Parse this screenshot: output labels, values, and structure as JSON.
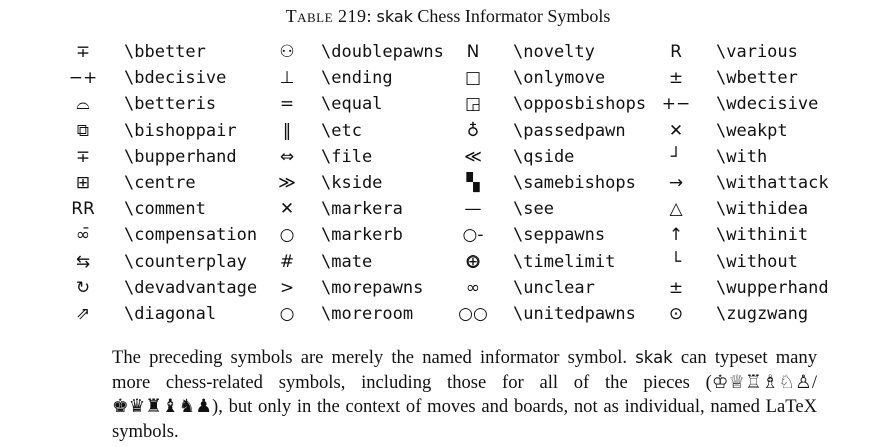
{
  "caption": {
    "label": "Table 219:",
    "package": "skak",
    "title": "Chess Informator Symbols"
  },
  "columns": [
    [
      {
        "glyph": "∓",
        "icon": "bbetter-icon",
        "command": "\\bbetter"
      },
      {
        "glyph": "−+",
        "icon": "bdecisive-icon",
        "command": "\\bdecisive"
      },
      {
        "glyph": "⌓",
        "icon": "betteris-icon",
        "command": "\\betteris"
      },
      {
        "glyph": "⧉",
        "icon": "bishoppair-icon",
        "command": "\\bishoppair"
      },
      {
        "glyph": "∓",
        "icon": "bupperhand-icon",
        "command": "\\bupperhand"
      },
      {
        "glyph": "⊞",
        "icon": "centre-icon",
        "command": "\\centre"
      },
      {
        "glyph": "RR",
        "icon": "comment-icon",
        "command": "\\comment"
      },
      {
        "glyph": "∞̄",
        "icon": "compensation-icon",
        "command": "\\compensation"
      },
      {
        "glyph": "⇆",
        "icon": "counterplay-icon",
        "command": "\\counterplay"
      },
      {
        "glyph": "↻",
        "icon": "devadvantage-icon",
        "command": "\\devadvantage"
      },
      {
        "glyph": "⇗",
        "icon": "diagonal-icon",
        "command": "\\diagonal"
      }
    ],
    [
      {
        "glyph": "⚇",
        "icon": "doublepawns-icon",
        "command": "\\doublepawns"
      },
      {
        "glyph": "⊥",
        "icon": "ending-icon",
        "command": "\\ending"
      },
      {
        "glyph": "=",
        "icon": "equal-icon",
        "command": "\\equal"
      },
      {
        "glyph": "‖",
        "icon": "etc-icon",
        "command": "\\etc"
      },
      {
        "glyph": "⇔",
        "icon": "file-icon",
        "command": "\\file"
      },
      {
        "glyph": "≫",
        "icon": "kside-icon",
        "command": "\\kside"
      },
      {
        "glyph": "✕",
        "icon": "markera-icon",
        "command": "\\markera"
      },
      {
        "glyph": "○",
        "icon": "markerb-icon",
        "command": "\\markerb"
      },
      {
        "glyph": "#",
        "icon": "mate-icon",
        "command": "\\mate"
      },
      {
        "glyph": ">",
        "icon": "morepawns-icon",
        "command": "\\morepawns"
      },
      {
        "glyph": "○",
        "icon": "moreroom-icon",
        "command": "\\moreroom"
      }
    ],
    [
      {
        "glyph": "N",
        "icon": "novelty-icon",
        "command": "\\novelty"
      },
      {
        "glyph": "□",
        "icon": "onlymove-icon",
        "command": "\\onlymove"
      },
      {
        "glyph": "◲",
        "icon": "opposbishops-icon",
        "command": "\\opposbishops"
      },
      {
        "glyph": "♁",
        "icon": "passedpawn-icon",
        "command": "\\passedpawn"
      },
      {
        "glyph": "≪",
        "icon": "qside-icon",
        "command": "\\qside"
      },
      {
        "glyph": "▚",
        "icon": "samebishops-icon",
        "command": "\\samebishops"
      },
      {
        "glyph": "—",
        "icon": "see-icon",
        "command": "\\see"
      },
      {
        "glyph": "○-○",
        "icon": "seppawns-icon",
        "command": "\\seppawns"
      },
      {
        "glyph": "⊕",
        "icon": "timelimit-icon",
        "command": "\\timelimit"
      },
      {
        "glyph": "∞",
        "icon": "unclear-icon",
        "command": "\\unclear"
      },
      {
        "glyph": "○○",
        "icon": "unitedpawns-icon",
        "command": "\\unitedpawns"
      }
    ],
    [
      {
        "glyph": "R",
        "icon": "various-icon",
        "command": "\\various"
      },
      {
        "glyph": "±",
        "icon": "wbetter-icon",
        "command": "\\wbetter"
      },
      {
        "glyph": "+−",
        "icon": "wdecisive-icon",
        "command": "\\wdecisive"
      },
      {
        "glyph": "✕",
        "icon": "weakpt-icon",
        "command": "\\weakpt"
      },
      {
        "glyph": "┘",
        "icon": "with-icon",
        "command": "\\with"
      },
      {
        "glyph": "→",
        "icon": "withattack-icon",
        "command": "\\withattack"
      },
      {
        "glyph": "△",
        "icon": "withidea-icon",
        "command": "\\withidea"
      },
      {
        "glyph": "↑",
        "icon": "withinit-icon",
        "command": "\\withinit"
      },
      {
        "glyph": "└",
        "icon": "without-icon",
        "command": "\\without"
      },
      {
        "glyph": "±",
        "icon": "wupperhand-icon",
        "command": "\\wupperhand"
      },
      {
        "glyph": "⊙",
        "icon": "zugzwang-icon",
        "command": "\\zugzwang"
      }
    ]
  ],
  "paragraph": {
    "part1": "The preceding symbols are merely the named informator symbol.",
    "package": "skak",
    "part2": "can typeset many more chess-related symbols, including those for all of the pieces (",
    "white_pieces": "♔♕♖♗♘♙",
    "separator": "/",
    "black_pieces": "♚♛♜♝♞♟",
    "part3": "), but only in the context of moves and boards, not as individual, named",
    "latex_logo": "LaTeX",
    "part4": "symbols."
  }
}
